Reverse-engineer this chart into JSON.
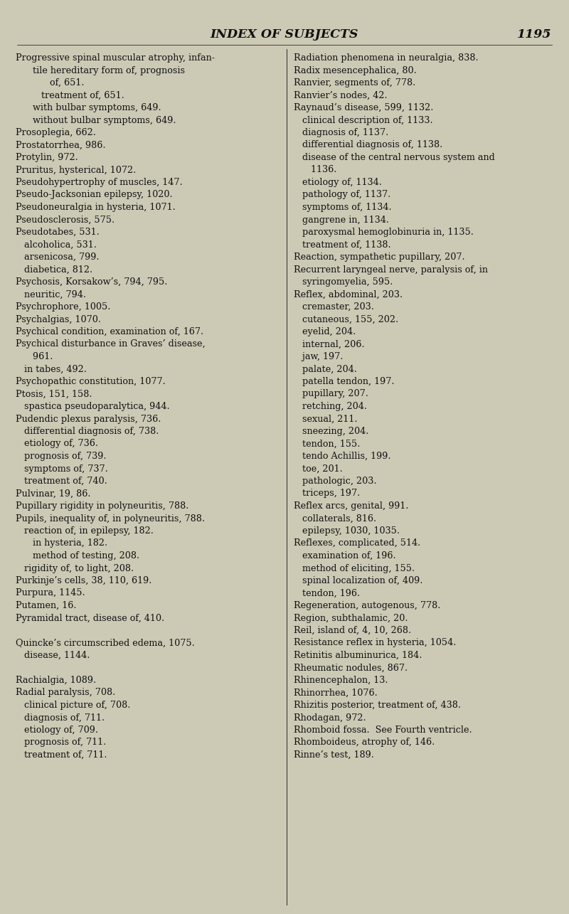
{
  "bg_color": "#ccc9b5",
  "text_color": "#111111",
  "title": "INDEX OF SUBJECTS",
  "page_num": "1195",
  "title_fontsize": 12.5,
  "body_fontsize": 9.2,
  "left_col": [
    "Progressive spinal muscular atrophy, infan-",
    "      tile hereditary form of, prognosis",
    "            of, 651.",
    "         treatment of, 651.",
    "      with bulbar symptoms, 649.",
    "      without bulbar symptoms, 649.",
    "Prosoplegia, 662.",
    "Prostatorrhea, 986.",
    "Protylin, 972.",
    "Pruritus, hysterical, 1072.",
    "Pseudohypertrophy of muscles, 147.",
    "Pseudo-Jacksonian epilepsy, 1020.",
    "Pseudoneuralgia in hysteria, 1071.",
    "Pseudosclerosis, 575.",
    "Pseudotabes, 531.",
    "   alcoholica, 531.",
    "   arsenicosa, 799.",
    "   diabetica, 812.",
    "Psychosis, Korsakow’s, 794, 795.",
    "   neuritic, 794.",
    "Psychrophore, 1005.",
    "Psychalgias, 1070.",
    "Psychical condition, examination of, 167.",
    "Psychical disturbance in Graves’ disease,",
    "      961.",
    "   in tabes, 492.",
    "Psychopathic constitution, 1077.",
    "Ptosis, 151, 158.",
    "   spastica pseudoparalytica, 944.",
    "Pudendic plexus paralysis, 736.",
    "   differential diagnosis of, 738.",
    "   etiology of, 736.",
    "   prognosis of, 739.",
    "   symptoms of, 737.",
    "   treatment of, 740.",
    "Pulvinar, 19, 86.",
    "Pupillary rigidity in polyneuritis, 788.",
    "Pupils, inequality of, in polyneuritis, 788.",
    "   reaction of, in epilepsy, 182.",
    "      in hysteria, 182.",
    "      method of testing, 208.",
    "   rigidity of, to light, 208.",
    "Purkinje’s cells, 38, 110, 619.",
    "Purpura, 1145.",
    "Putamen, 16.",
    "Pyramidal tract, disease of, 410.",
    "",
    "Quincke’s circumscribed edema, 1075.",
    "   disease, 1144.",
    "",
    "Rachialgia, 1089.",
    "Radial paralysis, 708.",
    "   clinical picture of, 708.",
    "   diagnosis of, 711.",
    "   etiology of, 709.",
    "   prognosis of, 711.",
    "   treatment of, 711."
  ],
  "right_col": [
    "Radiation phenomena in neuralgia, 838.",
    "Radix mesencephalica, 80.",
    "Ranvier, segments of, 778.",
    "Ranvier’s nodes, 42.",
    "Raynaud’s disease, 599, 1132.",
    "   clinical description of, 1133.",
    "   diagnosis of, 1137.",
    "   differential diagnosis of, 1138.",
    "   disease of the central nervous system and",
    "      1136.",
    "   etiology of, 1134.",
    "   pathology of, 1137.",
    "   symptoms of, 1134.",
    "   gangrene in, 1134.",
    "   paroxysmal hemoglobinuria in, 1135.",
    "   treatment of, 1138.",
    "Reaction, sympathetic pupillary, 207.",
    "Recurrent laryngeal nerve, paralysis of, in",
    "   syringomyelia, 595.",
    "Reflex, abdominal, 203.",
    "   cremaster, 203.",
    "   cutaneous, 155, 202.",
    "   eyelid, 204.",
    "   internal, 206.",
    "   jaw, 197.",
    "   palate, 204.",
    "   patella tendon, 197.",
    "   pupillary, 207.",
    "   retching, 204.",
    "   sexual, 211.",
    "   sneezing, 204.",
    "   tendon, 155.",
    "   tendo Achillis, 199.",
    "   toe, 201.",
    "   pathologic, 203.",
    "   triceps, 197.",
    "Reflex arcs, genital, 991.",
    "   collaterals, 816.",
    "   epilepsy, 1030, 1035.",
    "Reflexes, complicated, 514.",
    "   examination of, 196.",
    "   method of eliciting, 155.",
    "   spinal localization of, 409.",
    "   tendon, 196.",
    "Regeneration, autogenous, 778.",
    "Region, subthalamic, 20.",
    "Reil, island of, 4, 10, 268.",
    "Resistance reflex in hysteria, 1054.",
    "Retinitis albuminurica, 184.",
    "Rheumatic nodules, 867.",
    "Rhinencephalon, 13.",
    "Rhinorrhea, 1076.",
    "Rhizitis posterior, treatment of, 438.",
    "Rhodagan, 972.",
    "Rhomboid fossa.  See Fourth ventricle.",
    "Rhomboideus, atrophy of, 146.",
    "Rinne’s test, 189."
  ]
}
